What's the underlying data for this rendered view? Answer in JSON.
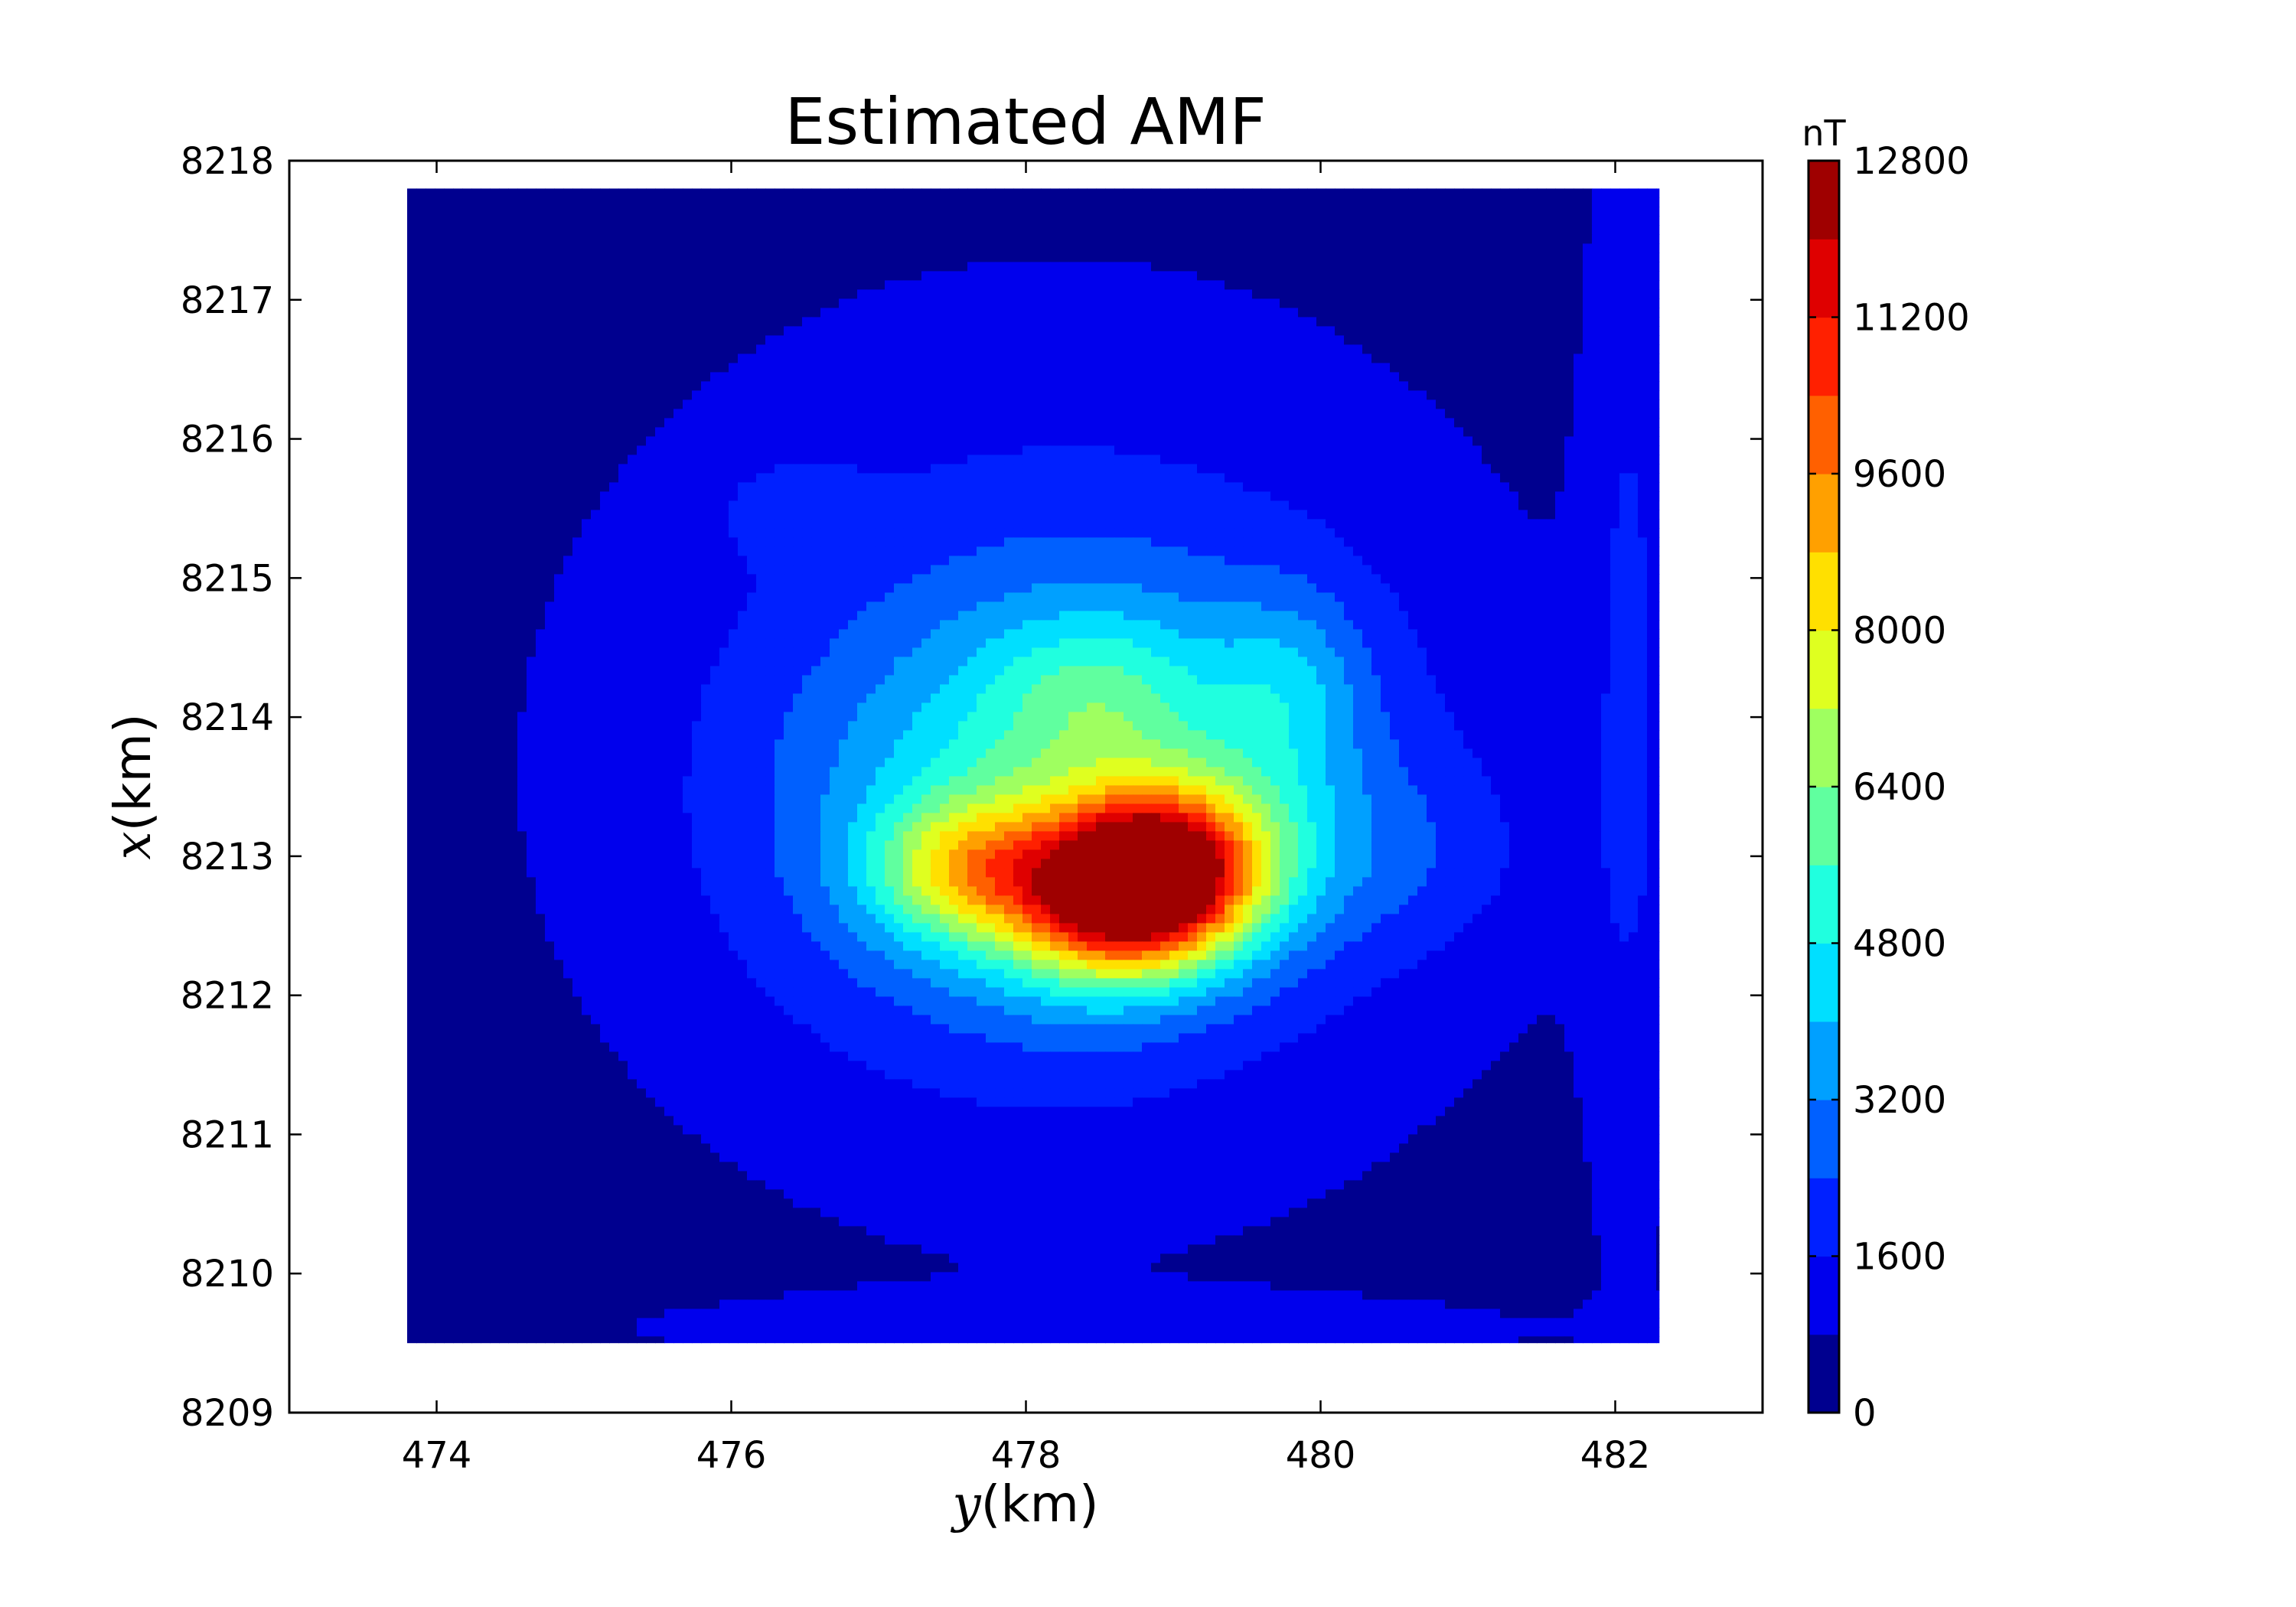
{
  "chart_data": {
    "type": "heatmap",
    "title": "Estimated AMF",
    "xlabel": {
      "symbol": "y",
      "unit": "(km)"
    },
    "ylabel": {
      "symbol": "x",
      "unit": "(km)"
    },
    "xlim": [
      473,
      483
    ],
    "ylim": [
      8209,
      8218
    ],
    "xticks": [
      "474",
      "476",
      "478",
      "480",
      "482"
    ],
    "yticks": [
      "8209",
      "8210",
      "8211",
      "8212",
      "8213",
      "8214",
      "8215",
      "8216",
      "8217",
      "8218"
    ],
    "colorbar": {
      "unit": "nT",
      "range": [
        0,
        12800
      ],
      "ticks": [
        "0",
        "1600",
        "3200",
        "4800",
        "6400",
        "8000",
        "9600",
        "11200",
        "12800"
      ],
      "levels": [
        0,
        800,
        1600,
        2400,
        3200,
        4000,
        4800,
        5600,
        6400,
        7200,
        8000,
        8800,
        9600,
        10400,
        11200,
        12000,
        12800
      ],
      "colors": [
        "#00008f",
        "#0000ed",
        "#0020ff",
        "#0060ff",
        "#00a0ff",
        "#00dfff",
        "#20ffdf",
        "#60ff9f",
        "#9fff60",
        "#dfff20",
        "#ffe000",
        "#ffa000",
        "#ff6000",
        "#ff2000",
        "#df0000",
        "#9f0000"
      ],
      "colormap": "jet"
    },
    "data_extent": {
      "y": [
        473.8,
        482.3
      ],
      "x": [
        8209.5,
        8217.8
      ]
    },
    "background_level": 400,
    "anomalies": [
      {
        "y": 478.8,
        "x": 8212.8,
        "peak": 12600,
        "sy": 0.55,
        "sx": 0.42,
        "rot": -15
      },
      {
        "y": 477.6,
        "x": 8212.9,
        "peak": 4200,
        "sy": 0.45,
        "sx": 0.35,
        "rot": 0
      },
      {
        "y": 478.3,
        "x": 8213.4,
        "peak": 3200,
        "sy": 1.2,
        "sx": 1.0,
        "rot": -10
      },
      {
        "y": 478.2,
        "x": 8213.7,
        "peak": 2000,
        "sy": 2.0,
        "sx": 2.0,
        "rot": 0
      },
      {
        "y": 478.5,
        "x": 8214.2,
        "peak": 1500,
        "sy": 0.5,
        "sx": 0.4,
        "rot": 0
      },
      {
        "y": 479.8,
        "x": 8214.2,
        "peak": 1600,
        "sy": 0.35,
        "sx": 0.5,
        "rot": 0
      },
      {
        "y": 482.1,
        "x": 8214.5,
        "peak": 1100,
        "sy": 0.22,
        "sx": 3.5,
        "rot": 0
      },
      {
        "y": 476.4,
        "x": 8215.5,
        "peak": 900,
        "sy": 0.35,
        "sx": 0.25,
        "rot": 0
      },
      {
        "y": 480.5,
        "x": 8213.0,
        "peak": 900,
        "sy": 0.7,
        "sx": 0.5,
        "rot": 0
      },
      {
        "y": 478.5,
        "x": 8209.6,
        "peak": 700,
        "sy": 2.5,
        "sx": 0.18,
        "rot": 0
      }
    ]
  }
}
